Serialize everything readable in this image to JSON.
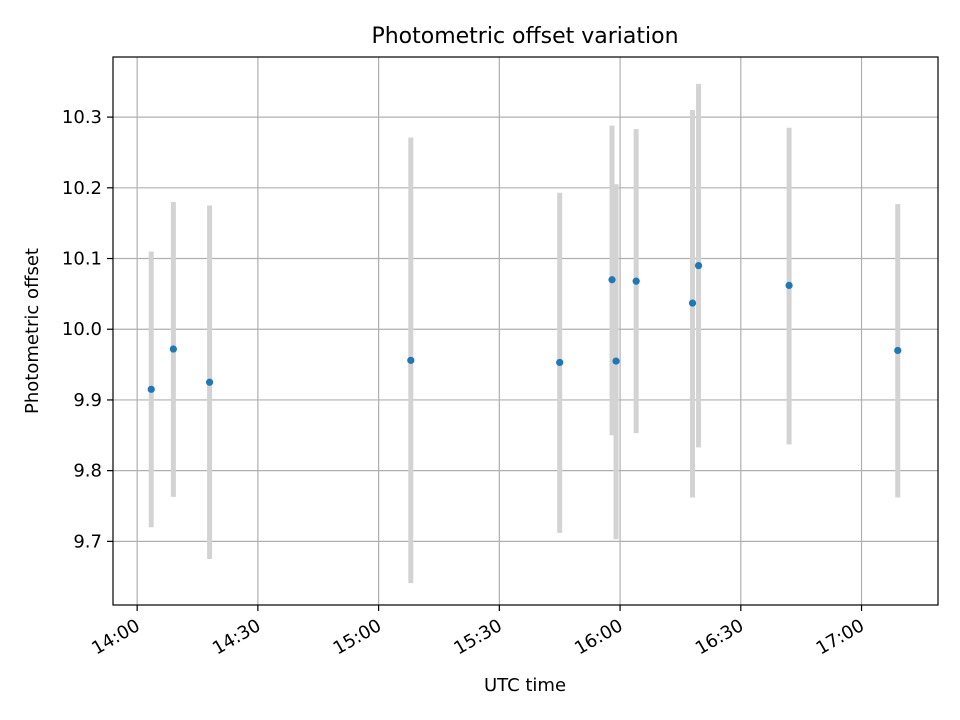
{
  "chart_data": {
    "type": "scatter",
    "title": "Photometric offset variation",
    "xlabel": "UTC time",
    "ylabel": "Photometric offset",
    "x_tick_labels": [
      "14:00",
      "14:30",
      "15:00",
      "15:30",
      "16:00",
      "16:30",
      "17:00"
    ],
    "y_tick_labels": [
      "9.7",
      "9.8",
      "9.9",
      "10.0",
      "10.1",
      "10.2",
      "10.3"
    ],
    "xlim": [
      "13:54",
      "17:19"
    ],
    "ylim": [
      9.61,
      10.385
    ],
    "grid": true,
    "marker_color": "#1f77b4",
    "errorbar_color": "#d3d3d3",
    "points": [
      {
        "time": "14:03.5",
        "y": 9.915,
        "yerr_low": 9.72,
        "yerr_high": 10.11
      },
      {
        "time": "14:09.0",
        "y": 9.972,
        "yerr_low": 9.763,
        "yerr_high": 10.18
      },
      {
        "time": "14:18.0",
        "y": 9.925,
        "yerr_low": 9.675,
        "yerr_high": 10.175
      },
      {
        "time": "15:08.0",
        "y": 9.956,
        "yerr_low": 9.641,
        "yerr_high": 10.271
      },
      {
        "time": "15:45.0",
        "y": 9.953,
        "yerr_low": 9.712,
        "yerr_high": 10.193
      },
      {
        "time": "15:58.0",
        "y": 10.07,
        "yerr_low": 9.85,
        "yerr_high": 10.288
      },
      {
        "time": "15:59.0",
        "y": 9.955,
        "yerr_low": 9.703,
        "yerr_high": 10.205
      },
      {
        "time": "16:04.0",
        "y": 10.068,
        "yerr_low": 9.853,
        "yerr_high": 10.283
      },
      {
        "time": "16:18.0",
        "y": 10.037,
        "yerr_low": 9.762,
        "yerr_high": 10.31
      },
      {
        "time": "16:19.5",
        "y": 10.09,
        "yerr_low": 9.833,
        "yerr_high": 10.347
      },
      {
        "time": "16:42.0",
        "y": 10.062,
        "yerr_low": 9.837,
        "yerr_high": 10.285
      },
      {
        "time": "17:09.0",
        "y": 9.97,
        "yerr_low": 9.762,
        "yerr_high": 10.177
      }
    ]
  }
}
